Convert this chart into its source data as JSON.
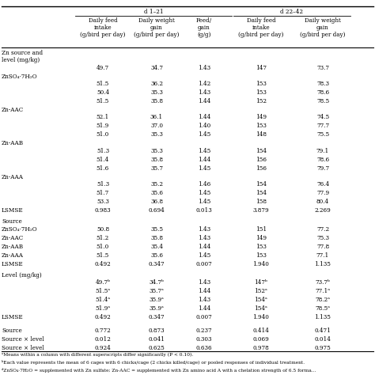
{
  "title_d1": "d 1–21",
  "title_d2": "d 22–42",
  "col_headers": [
    "Daily feed\nintake\n(g/bird per day)",
    "Daily weight\ngain\n(g/bird per day)",
    "Feed/\ngain\n(g/g)",
    "Daily feed\nintake\n(g/bird per day)",
    "Daily weight\ngain\n(g/bird per day)"
  ],
  "rows": [
    {
      "label": "Zn source and\nlevel (mg/kg)",
      "values": null,
      "type": "header2"
    },
    {
      "label": "",
      "values": [
        "49.7",
        "34.7",
        "1.43",
        "147",
        "73.7"
      ],
      "type": "data"
    },
    {
      "label": "ZnSO₄·7H₂O",
      "values": null,
      "type": "grouplabel"
    },
    {
      "label": "",
      "values": [
        "51.5",
        "36.2",
        "1.42",
        "153",
        "78.3"
      ],
      "type": "data"
    },
    {
      "label": "",
      "values": [
        "50.4",
        "35.3",
        "1.43",
        "153",
        "78.6"
      ],
      "type": "data"
    },
    {
      "label": "",
      "values": [
        "51.5",
        "35.8",
        "1.44",
        "152",
        "78.5"
      ],
      "type": "data"
    },
    {
      "label": "Zn-AAC",
      "values": null,
      "type": "grouplabel"
    },
    {
      "label": "",
      "values": [
        "52.1",
        "36.1",
        "1.44",
        "149",
        "74.5"
      ],
      "type": "data"
    },
    {
      "label": "",
      "values": [
        "51.9",
        "37.0",
        "1.40",
        "153",
        "77.7"
      ],
      "type": "data"
    },
    {
      "label": "",
      "values": [
        "51.0",
        "35.3",
        "1.45",
        "148",
        "75.5"
      ],
      "type": "data"
    },
    {
      "label": "Zn-AAB",
      "values": null,
      "type": "grouplabel"
    },
    {
      "label": "",
      "values": [
        "51.3",
        "35.3",
        "1.45",
        "154",
        "79.1"
      ],
      "type": "data"
    },
    {
      "label": "",
      "values": [
        "51.4",
        "35.8",
        "1.44",
        "156",
        "78.6"
      ],
      "type": "data"
    },
    {
      "label": "",
      "values": [
        "51.6",
        "35.7",
        "1.45",
        "156",
        "79.7"
      ],
      "type": "data"
    },
    {
      "label": "Zn-AAA",
      "values": null,
      "type": "grouplabel"
    },
    {
      "label": "",
      "values": [
        "51.3",
        "35.2",
        "1.46",
        "154",
        "76.4"
      ],
      "type": "data"
    },
    {
      "label": "",
      "values": [
        "51.7",
        "35.6",
        "1.45",
        "154",
        "77.9"
      ],
      "type": "data"
    },
    {
      "label": "",
      "values": [
        "53.3",
        "36.8",
        "1.45",
        "158",
        "80.4"
      ],
      "type": "data"
    },
    {
      "label": "LSMSE",
      "values": [
        "0.983",
        "0.694",
        "0.013",
        "3.879",
        "2.269"
      ],
      "type": "lsmse"
    },
    {
      "label": "Source",
      "values": null,
      "type": "sectionlabel"
    },
    {
      "label": "ZnSO₄·7H₂O",
      "values": [
        "50.8",
        "35.5",
        "1.43",
        "151",
        "77.2"
      ],
      "type": "data"
    },
    {
      "label": "Zn-AAC",
      "values": [
        "51.2",
        "35.8",
        "1.43",
        "149",
        "75.3"
      ],
      "type": "data"
    },
    {
      "label": "Zn-AAB",
      "values": [
        "51.0",
        "35.4",
        "1.44",
        "153",
        "77.8"
      ],
      "type": "data"
    },
    {
      "label": "Zn-AAA",
      "values": [
        "51.5",
        "35.6",
        "1.45",
        "153",
        "77.1"
      ],
      "type": "data"
    },
    {
      "label": "LSMSE",
      "values": [
        "0.492",
        "0.347",
        "0.007",
        "1.940",
        "1.135"
      ],
      "type": "lsmse"
    },
    {
      "label": "Level (mg/kg)",
      "values": null,
      "type": "sectionlabel"
    },
    {
      "label": "",
      "values": [
        "49.7ᵇ",
        "34.7ᵇ",
        "1.43",
        "147ᵇ",
        "73.7ᵇ"
      ],
      "type": "data"
    },
    {
      "label": "",
      "values": [
        "51.5ᵃ",
        "35.7ᵃ",
        "1.44",
        "152ᵃ",
        "77.1ᵃ"
      ],
      "type": "data"
    },
    {
      "label": "",
      "values": [
        "51.4ᵃ",
        "35.9ᵃ",
        "1.43",
        "154ᵃ",
        "78.2ᵃ"
      ],
      "type": "data"
    },
    {
      "label": "",
      "values": [
        "51.9ᵃ",
        "35.9ᵃ",
        "1.44",
        "154ᵃ",
        "78.5ᵃ"
      ],
      "type": "data"
    },
    {
      "label": "LSMSE",
      "values": [
        "0.492",
        "0.347",
        "0.007",
        "1.940",
        "1.135"
      ],
      "type": "lsmse"
    },
    {
      "label": "",
      "values": null,
      "type": "spacer"
    },
    {
      "label": "Source",
      "values": [
        "0.772",
        "0.873",
        "0.237",
        "0.414",
        "0.471"
      ],
      "type": "data"
    },
    {
      "label": "Source × level",
      "values": [
        "0.012",
        "0.041",
        "0.303",
        "0.069",
        "0.014"
      ],
      "type": "data"
    },
    {
      "label": "Source × level",
      "values": [
        "0.924",
        "0.625",
        "0.636",
        "0.978",
        "0.975"
      ],
      "type": "data"
    }
  ],
  "footnotes": [
    "ᵃMeans within a column with different superscripts differ significantly (P < 0.10).",
    "ᵇEach value represents the mean of 6 cages with 6 chicks/cage (2 chicks killed/cage) or pooled responses of individual treatment.",
    "ᵈZnSO₄·7H₂O = supplemented with Zn sulfate; Zn-AAC = supplemented with Zn amino acid A with a chelation strength of 6.5 forma..."
  ],
  "left_labels_visible": [
    "Zn source and",
    "level (mg/kg)",
    "ZnSO₄·7H₂O",
    "Zn-AAC",
    "Zn-AAB",
    "Zn-AAA",
    "LSMSE",
    "Source",
    "ZnSO₄·7H₂O",
    "Zn-AAC",
    "Zn-AAB",
    "Zn-AAA",
    "LSMSE",
    "Level (mg/kg)",
    "LSMSE",
    "Source",
    "Source × level",
    "Source × level"
  ],
  "pval_labels": [
    "Source",
    "Source × level",
    "Source × level"
  ]
}
